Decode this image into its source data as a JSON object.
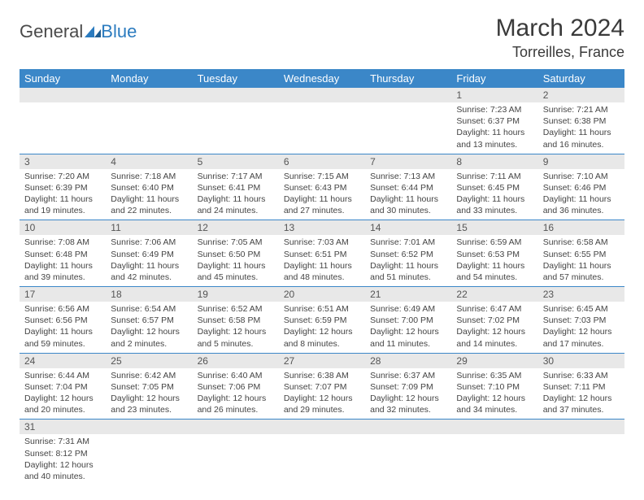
{
  "brand": {
    "part1": "General",
    "part2": "Blue"
  },
  "title": "March 2024",
  "location": "Torreilles, France",
  "colors": {
    "header_bg": "#3b87c8",
    "header_text": "#ffffff",
    "daynum_bg": "#e8e8e8",
    "border": "#3b87c8",
    "brand_blue": "#2b7bbf",
    "brand_gray": "#4a4a4a"
  },
  "weekdays": [
    "Sunday",
    "Monday",
    "Tuesday",
    "Wednesday",
    "Thursday",
    "Friday",
    "Saturday"
  ],
  "weeks": [
    [
      null,
      null,
      null,
      null,
      null,
      {
        "n": "1",
        "sr": "7:23 AM",
        "ss": "6:37 PM",
        "dl": "11 hours and 13 minutes."
      },
      {
        "n": "2",
        "sr": "7:21 AM",
        "ss": "6:38 PM",
        "dl": "11 hours and 16 minutes."
      }
    ],
    [
      {
        "n": "3",
        "sr": "7:20 AM",
        "ss": "6:39 PM",
        "dl": "11 hours and 19 minutes."
      },
      {
        "n": "4",
        "sr": "7:18 AM",
        "ss": "6:40 PM",
        "dl": "11 hours and 22 minutes."
      },
      {
        "n": "5",
        "sr": "7:17 AM",
        "ss": "6:41 PM",
        "dl": "11 hours and 24 minutes."
      },
      {
        "n": "6",
        "sr": "7:15 AM",
        "ss": "6:43 PM",
        "dl": "11 hours and 27 minutes."
      },
      {
        "n": "7",
        "sr": "7:13 AM",
        "ss": "6:44 PM",
        "dl": "11 hours and 30 minutes."
      },
      {
        "n": "8",
        "sr": "7:11 AM",
        "ss": "6:45 PM",
        "dl": "11 hours and 33 minutes."
      },
      {
        "n": "9",
        "sr": "7:10 AM",
        "ss": "6:46 PM",
        "dl": "11 hours and 36 minutes."
      }
    ],
    [
      {
        "n": "10",
        "sr": "7:08 AM",
        "ss": "6:48 PM",
        "dl": "11 hours and 39 minutes."
      },
      {
        "n": "11",
        "sr": "7:06 AM",
        "ss": "6:49 PM",
        "dl": "11 hours and 42 minutes."
      },
      {
        "n": "12",
        "sr": "7:05 AM",
        "ss": "6:50 PM",
        "dl": "11 hours and 45 minutes."
      },
      {
        "n": "13",
        "sr": "7:03 AM",
        "ss": "6:51 PM",
        "dl": "11 hours and 48 minutes."
      },
      {
        "n": "14",
        "sr": "7:01 AM",
        "ss": "6:52 PM",
        "dl": "11 hours and 51 minutes."
      },
      {
        "n": "15",
        "sr": "6:59 AM",
        "ss": "6:53 PM",
        "dl": "11 hours and 54 minutes."
      },
      {
        "n": "16",
        "sr": "6:58 AM",
        "ss": "6:55 PM",
        "dl": "11 hours and 57 minutes."
      }
    ],
    [
      {
        "n": "17",
        "sr": "6:56 AM",
        "ss": "6:56 PM",
        "dl": "11 hours and 59 minutes."
      },
      {
        "n": "18",
        "sr": "6:54 AM",
        "ss": "6:57 PM",
        "dl": "12 hours and 2 minutes."
      },
      {
        "n": "19",
        "sr": "6:52 AM",
        "ss": "6:58 PM",
        "dl": "12 hours and 5 minutes."
      },
      {
        "n": "20",
        "sr": "6:51 AM",
        "ss": "6:59 PM",
        "dl": "12 hours and 8 minutes."
      },
      {
        "n": "21",
        "sr": "6:49 AM",
        "ss": "7:00 PM",
        "dl": "12 hours and 11 minutes."
      },
      {
        "n": "22",
        "sr": "6:47 AM",
        "ss": "7:02 PM",
        "dl": "12 hours and 14 minutes."
      },
      {
        "n": "23",
        "sr": "6:45 AM",
        "ss": "7:03 PM",
        "dl": "12 hours and 17 minutes."
      }
    ],
    [
      {
        "n": "24",
        "sr": "6:44 AM",
        "ss": "7:04 PM",
        "dl": "12 hours and 20 minutes."
      },
      {
        "n": "25",
        "sr": "6:42 AM",
        "ss": "7:05 PM",
        "dl": "12 hours and 23 minutes."
      },
      {
        "n": "26",
        "sr": "6:40 AM",
        "ss": "7:06 PM",
        "dl": "12 hours and 26 minutes."
      },
      {
        "n": "27",
        "sr": "6:38 AM",
        "ss": "7:07 PM",
        "dl": "12 hours and 29 minutes."
      },
      {
        "n": "28",
        "sr": "6:37 AM",
        "ss": "7:09 PM",
        "dl": "12 hours and 32 minutes."
      },
      {
        "n": "29",
        "sr": "6:35 AM",
        "ss": "7:10 PM",
        "dl": "12 hours and 34 minutes."
      },
      {
        "n": "30",
        "sr": "6:33 AM",
        "ss": "7:11 PM",
        "dl": "12 hours and 37 minutes."
      }
    ],
    [
      {
        "n": "31",
        "sr": "7:31 AM",
        "ss": "8:12 PM",
        "dl": "12 hours and 40 minutes."
      },
      null,
      null,
      null,
      null,
      null,
      null
    ]
  ],
  "labels": {
    "sunrise": "Sunrise:",
    "sunset": "Sunset:",
    "daylight": "Daylight:"
  }
}
